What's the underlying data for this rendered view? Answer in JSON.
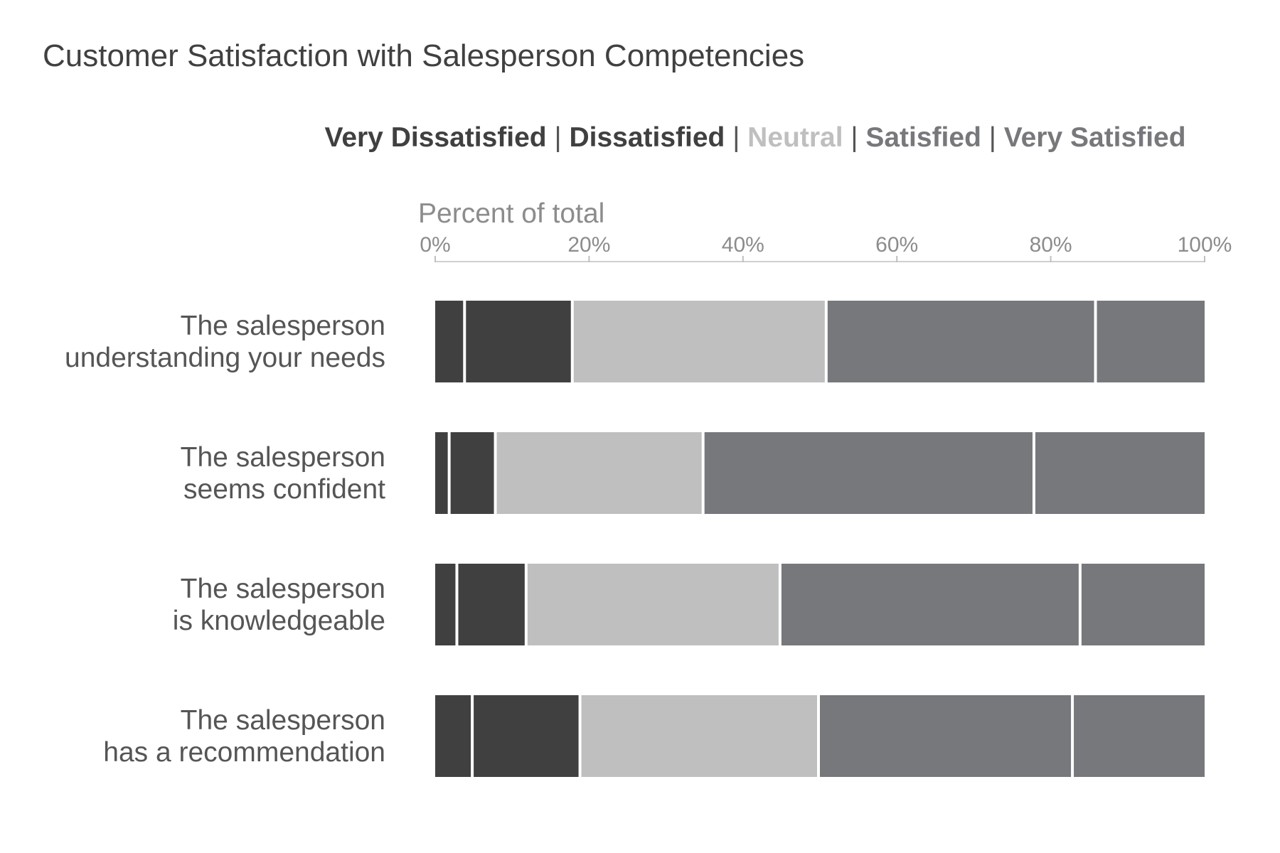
{
  "chart_data": {
    "type": "bar",
    "orientation": "horizontal",
    "stacked": true,
    "title": "Customer Satisfaction with Salesperson Competencies",
    "xlabel": "Percent of total",
    "ylabel": "",
    "xlim": [
      0,
      100
    ],
    "ticks": [
      0,
      20,
      40,
      60,
      80,
      100
    ],
    "tick_labels": [
      "0%",
      "20%",
      "40%",
      "60%",
      "80%",
      "100%"
    ],
    "legend_position": "top",
    "legend_separator": "|",
    "categories": [
      [
        "The salesperson",
        "understanding your needs"
      ],
      [
        "The salesperson",
        "seems confident"
      ],
      [
        "The salesperson",
        "is knowledgeable"
      ],
      [
        "The salesperson",
        "has a recommendation"
      ]
    ],
    "series": [
      {
        "name": "Very Dissatisfied",
        "color": "#404040",
        "values": [
          4,
          2,
          3,
          5
        ]
      },
      {
        "name": "Dissatisfied",
        "color": "#404040",
        "values": [
          14,
          6,
          9,
          14
        ]
      },
      {
        "name": "Neutral",
        "color": "#bfbfbf",
        "values": [
          33,
          27,
          33,
          31
        ]
      },
      {
        "name": "Satisfied",
        "color": "#77787b",
        "values": [
          35,
          43,
          39,
          33
        ]
      },
      {
        "name": "Very Satisfied",
        "color": "#77787b",
        "values": [
          14,
          22,
          16,
          17
        ]
      }
    ]
  }
}
